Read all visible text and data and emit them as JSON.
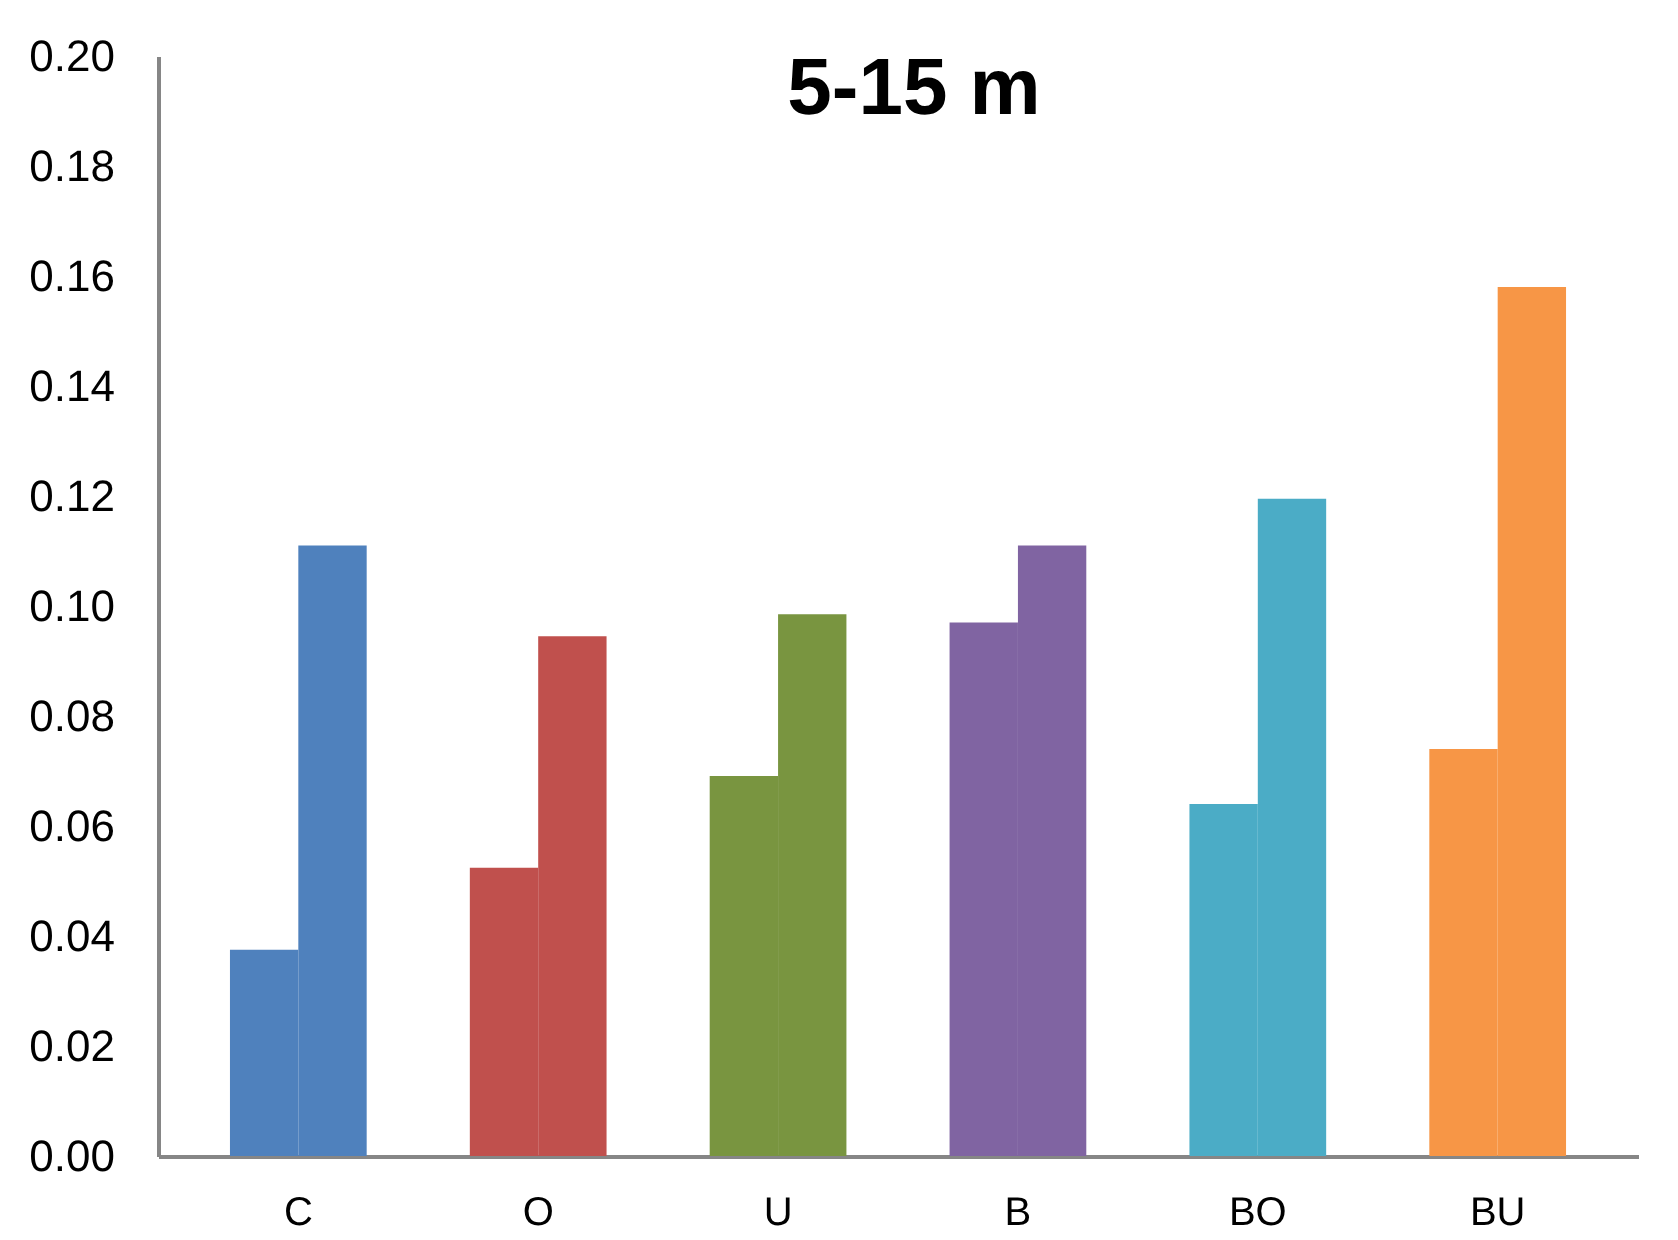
{
  "chart_data": {
    "type": "bar",
    "title": "5-15 m",
    "categories": [
      "C",
      "O",
      "U",
      "B",
      "BO",
      "BU"
    ],
    "series": [
      {
        "values": [
          0.0375,
          0.0524,
          0.0691,
          0.097,
          0.064,
          0.074
        ],
        "colors": [
          "#4f81bd",
          "#c0504d",
          "#799540",
          "#8064a2",
          "#4bacc6",
          "#f79646"
        ]
      },
      {
        "values": [
          0.111,
          0.0945,
          0.0985,
          0.111,
          0.1195,
          0.158
        ],
        "colors": [
          "#4f81bd",
          "#c0504d",
          "#799540",
          "#8064a2",
          "#4bacc6",
          "#f79646"
        ]
      }
    ],
    "ylim": [
      0,
      0.2
    ],
    "yticks": [
      {
        "value": 0,
        "label": "0.00"
      },
      0.02,
      0.04,
      0.06,
      0.08,
      {
        "value": 0.1,
        "label": "0.10"
      },
      0.12,
      0.14,
      0.16,
      0.18,
      {
        "value": 0.2,
        "label": "0.20"
      }
    ],
    "grid": false
  }
}
